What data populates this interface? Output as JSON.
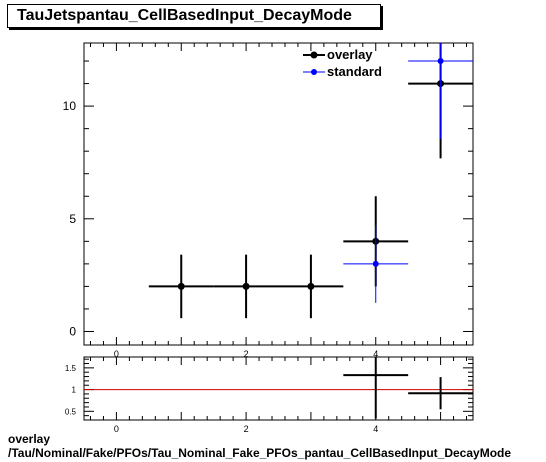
{
  "title": "TauJetspantau_CellBasedInput_DecayMode",
  "caption_line1": "overlay",
  "caption_line2": "/Tau/Nominal/Fake/PFOs/Tau_Nominal_Fake_PFOs_pantau_CellBasedInput_DecayMode",
  "colors": {
    "overlay": "#000000",
    "standard": "#0000ff",
    "ratio_line": "#cc0000"
  },
  "chart_data": [
    {
      "type": "scatter",
      "title": "TauJetspantau_CellBasedInput_DecayMode",
      "xlabel": "",
      "ylabel": "",
      "xlim": [
        -0.5,
        5.5
      ],
      "ylim": [
        -0.6,
        12.8
      ],
      "xticks": [
        0,
        2,
        4
      ],
      "yticks": [
        0,
        5,
        10
      ],
      "legend": {
        "position": "top-right",
        "entries": [
          "overlay",
          "standard"
        ]
      },
      "series": [
        {
          "name": "overlay",
          "points": [
            {
              "x": 1,
              "y": 2,
              "xerr": 0.5,
              "yerr": 1.41
            },
            {
              "x": 2,
              "y": 2,
              "xerr": 0.5,
              "yerr": 1.41
            },
            {
              "x": 3,
              "y": 2,
              "xerr": 0.5,
              "yerr": 1.41
            },
            {
              "x": 4,
              "y": 4,
              "xerr": 0.5,
              "yerr": 2.0
            },
            {
              "x": 5,
              "y": 11,
              "xerr": 0.5,
              "yerr": 3.32
            }
          ]
        },
        {
          "name": "standard",
          "points": [
            {
              "x": 4,
              "y": 3,
              "xerr": 0.5,
              "yerr": 1.73
            },
            {
              "x": 5,
              "y": 12,
              "xerr": 0.5,
              "yerr": 3.46
            }
          ]
        }
      ]
    },
    {
      "type": "scatter",
      "title": "",
      "xlabel": "",
      "ylabel": "",
      "xlim": [
        -0.5,
        5.5
      ],
      "ylim": [
        0.3,
        1.75
      ],
      "xticks": [
        0,
        2,
        4
      ],
      "yticks": [
        0.5,
        1,
        1.5
      ],
      "ytick_labels": [
        "0.5",
        "1",
        "1.5"
      ],
      "reference_line": 1,
      "series": [
        {
          "name": "ratio",
          "points": [
            {
              "x": 4,
              "y": 1.333,
              "xerr": 0.5,
              "yerr": 1.0
            },
            {
              "x": 5,
              "y": 0.917,
              "xerr": 0.5,
              "yerr": 0.37
            }
          ]
        }
      ]
    }
  ]
}
